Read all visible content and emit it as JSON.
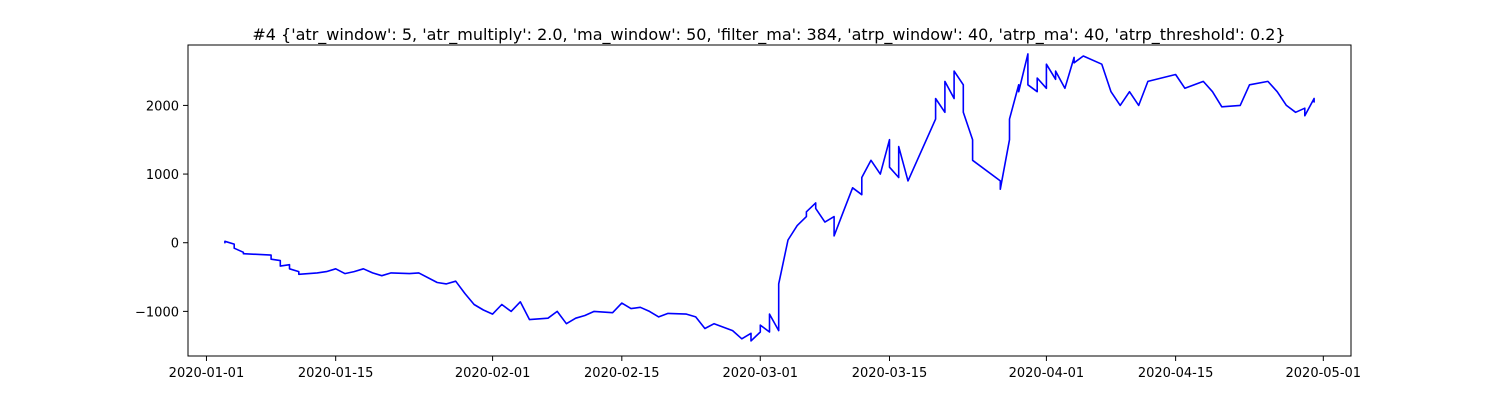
{
  "chart_data": {
    "type": "line",
    "title": "#4 {'atr_window': 5, 'atr_multiply': 2.0, 'ma_window': 50, 'filter_ma': 384, 'atrp_window': 40, 'atrp_ma': 40, 'atrp_threshold': 0.2}",
    "xlabel": "",
    "ylabel": "",
    "xlim": [
      "2019-12-30",
      "2020-05-04"
    ],
    "ylim": [
      -1650,
      2880
    ],
    "x_ticks": [
      "2020-01-01",
      "2020-01-15",
      "2020-02-01",
      "2020-02-15",
      "2020-03-01",
      "2020-03-15",
      "2020-04-01",
      "2020-04-15",
      "2020-05-01"
    ],
    "y_ticks": [
      -1000,
      0,
      1000,
      2000
    ],
    "grid": false,
    "color": "#0000ff",
    "series": [
      {
        "points": [
          [
            "2020-01-03",
            0
          ],
          [
            "2020-01-03",
            20
          ],
          [
            "2020-01-04",
            -20
          ],
          [
            "2020-01-04",
            -80
          ],
          [
            "2020-01-05",
            -140
          ],
          [
            "2020-01-05",
            -160
          ],
          [
            "2020-01-08",
            -180
          ],
          [
            "2020-01-08",
            -240
          ],
          [
            "2020-01-09",
            -260
          ],
          [
            "2020-01-09",
            -340
          ],
          [
            "2020-01-10",
            -320
          ],
          [
            "2020-01-10",
            -380
          ],
          [
            "2020-01-11",
            -420
          ],
          [
            "2020-01-11",
            -460
          ],
          [
            "2020-01-13",
            -440
          ],
          [
            "2020-01-14",
            -420
          ],
          [
            "2020-01-15",
            -380
          ],
          [
            "2020-01-16",
            -450
          ],
          [
            "2020-01-17",
            -420
          ],
          [
            "2020-01-18",
            -380
          ],
          [
            "2020-01-19",
            -440
          ],
          [
            "2020-01-20",
            -480
          ],
          [
            "2020-01-21",
            -440
          ],
          [
            "2020-01-23",
            -450
          ],
          [
            "2020-01-24",
            -440
          ],
          [
            "2020-01-26",
            -580
          ],
          [
            "2020-01-27",
            -600
          ],
          [
            "2020-01-28",
            -560
          ],
          [
            "2020-01-29",
            -740
          ],
          [
            "2020-01-30",
            -900
          ],
          [
            "2020-01-31",
            -980
          ],
          [
            "2020-02-01",
            -1040
          ],
          [
            "2020-02-02",
            -900
          ],
          [
            "2020-02-03",
            -1000
          ],
          [
            "2020-02-04",
            -860
          ],
          [
            "2020-02-05",
            -1120
          ],
          [
            "2020-02-07",
            -1100
          ],
          [
            "2020-02-08",
            -1000
          ],
          [
            "2020-02-09",
            -1180
          ],
          [
            "2020-02-10",
            -1100
          ],
          [
            "2020-02-11",
            -1060
          ],
          [
            "2020-02-12",
            -1000
          ],
          [
            "2020-02-14",
            -1020
          ],
          [
            "2020-02-15",
            -880
          ],
          [
            "2020-02-16",
            -960
          ],
          [
            "2020-02-17",
            -940
          ],
          [
            "2020-02-18",
            -1000
          ],
          [
            "2020-02-19",
            -1080
          ],
          [
            "2020-02-20",
            -1030
          ],
          [
            "2020-02-22",
            -1040
          ],
          [
            "2020-02-23",
            -1080
          ],
          [
            "2020-02-24",
            -1250
          ],
          [
            "2020-02-25",
            -1180
          ],
          [
            "2020-02-27",
            -1280
          ],
          [
            "2020-02-28",
            -1400
          ],
          [
            "2020-02-29",
            -1320
          ],
          [
            "2020-02-29",
            -1430
          ],
          [
            "2020-03-01",
            -1300
          ],
          [
            "2020-03-01",
            -1200
          ],
          [
            "2020-03-02",
            -1300
          ],
          [
            "2020-03-02",
            -1040
          ],
          [
            "2020-03-03",
            -1280
          ],
          [
            "2020-03-03",
            -1100
          ],
          [
            "2020-03-03",
            -600
          ],
          [
            "2020-03-04",
            40
          ],
          [
            "2020-03-05",
            250
          ],
          [
            "2020-03-06",
            380
          ],
          [
            "2020-03-06",
            450
          ],
          [
            "2020-03-07",
            580
          ],
          [
            "2020-03-07",
            500
          ],
          [
            "2020-03-08",
            300
          ],
          [
            "2020-03-09",
            380
          ],
          [
            "2020-03-09",
            100
          ],
          [
            "2020-03-10",
            450
          ],
          [
            "2020-03-11",
            800
          ],
          [
            "2020-03-12",
            700
          ],
          [
            "2020-03-12",
            950
          ],
          [
            "2020-03-13",
            1200
          ],
          [
            "2020-03-14",
            1000
          ],
          [
            "2020-03-15",
            1500
          ],
          [
            "2020-03-15",
            1100
          ],
          [
            "2020-03-16",
            950
          ],
          [
            "2020-03-16",
            1400
          ],
          [
            "2020-03-17",
            900
          ],
          [
            "2020-03-20",
            1800
          ],
          [
            "2020-03-20",
            2100
          ],
          [
            "2020-03-21",
            1900
          ],
          [
            "2020-03-21",
            2350
          ],
          [
            "2020-03-22",
            2100
          ],
          [
            "2020-03-22",
            2500
          ],
          [
            "2020-03-23",
            2300
          ],
          [
            "2020-03-23",
            1900
          ],
          [
            "2020-03-24",
            1500
          ],
          [
            "2020-03-24",
            1200
          ],
          [
            "2020-03-27",
            900
          ],
          [
            "2020-03-27",
            780
          ],
          [
            "2020-03-28",
            1500
          ],
          [
            "2020-03-28",
            1800
          ],
          [
            "2020-03-29",
            2300
          ],
          [
            "2020-03-29",
            2200
          ],
          [
            "2020-03-30",
            2750
          ],
          [
            "2020-03-30",
            2300
          ],
          [
            "2020-03-31",
            2200
          ],
          [
            "2020-03-31",
            2400
          ],
          [
            "2020-04-01",
            2250
          ],
          [
            "2020-04-01",
            2600
          ],
          [
            "2020-04-02",
            2380
          ],
          [
            "2020-04-02",
            2500
          ],
          [
            "2020-04-03",
            2250
          ],
          [
            "2020-04-04",
            2700
          ],
          [
            "2020-04-04",
            2620
          ],
          [
            "2020-04-05",
            2720
          ],
          [
            "2020-04-07",
            2600
          ],
          [
            "2020-04-08",
            2200
          ],
          [
            "2020-04-09",
            2000
          ],
          [
            "2020-04-10",
            2200
          ],
          [
            "2020-04-11",
            2000
          ],
          [
            "2020-04-12",
            2350
          ],
          [
            "2020-04-15",
            2450
          ],
          [
            "2020-04-16",
            2250
          ],
          [
            "2020-04-18",
            2350
          ],
          [
            "2020-04-19",
            2200
          ],
          [
            "2020-04-20",
            1980
          ],
          [
            "2020-04-22",
            2000
          ],
          [
            "2020-04-23",
            2300
          ],
          [
            "2020-04-25",
            2350
          ],
          [
            "2020-04-26",
            2200
          ],
          [
            "2020-04-27",
            2000
          ],
          [
            "2020-04-28",
            1900
          ],
          [
            "2020-04-29",
            1960
          ],
          [
            "2020-04-29",
            1850
          ],
          [
            "2020-04-30",
            2100
          ],
          [
            "2020-04-30",
            2050
          ]
        ]
      }
    ]
  }
}
